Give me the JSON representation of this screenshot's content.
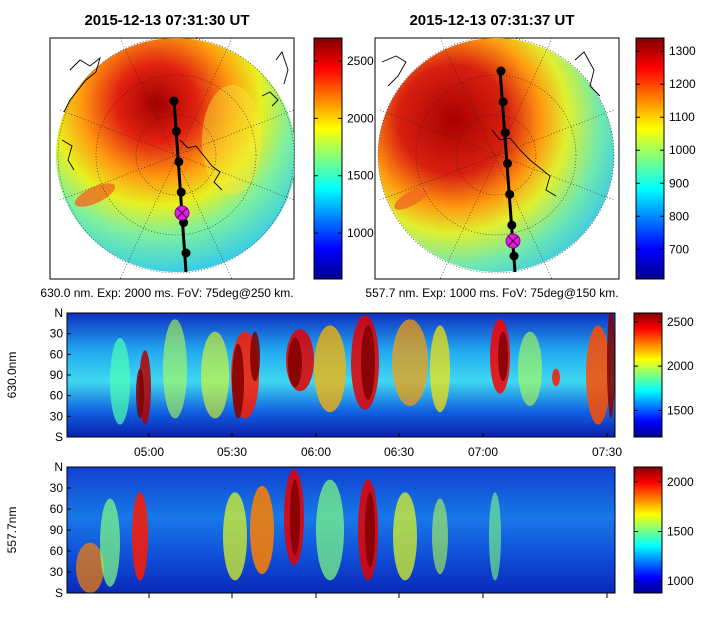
{
  "chart_data": [
    {
      "type": "heatmap",
      "panel": "all-sky-image",
      "title": "2015-12-13 07:31:30 UT",
      "caption": "630.0 nm. Exp: 2000 ms. FoV: 75deg@250 km.",
      "colorbar": {
        "min": 600,
        "max": 2700,
        "ticks": [
          1000,
          1500,
          2000,
          2500
        ],
        "tick_labels": [
          "1000",
          "1500",
          "2000",
          "2500"
        ]
      },
      "track_points": 6
    },
    {
      "type": "heatmap",
      "panel": "all-sky-image",
      "title": "2015-12-13 07:31:37 UT",
      "caption": "557.7 nm. Exp: 1000 ms. FoV: 75deg@150 km.",
      "colorbar": {
        "min": 610,
        "max": 1340,
        "ticks": [
          700,
          800,
          900,
          1000,
          1100,
          1200,
          1300
        ],
        "tick_labels": [
          "700",
          "800",
          "900",
          "1000",
          "1100",
          "1200",
          "1300"
        ]
      },
      "track_points": 7
    },
    {
      "type": "heatmap",
      "panel": "keogram",
      "ylabel": "630.0nm",
      "y_tick_labels": [
        "N",
        "30",
        "60",
        "90",
        "60",
        "30",
        "S"
      ],
      "x_tick_labels": [
        "05:00",
        "05:30",
        "06:00",
        "06:30",
        "07:00",
        "07:30"
      ],
      "colorbar": {
        "min": 1200,
        "max": 2600,
        "ticks": [
          1500,
          2000,
          2500
        ],
        "tick_labels": [
          "1500",
          "2000",
          "2500"
        ]
      }
    },
    {
      "type": "heatmap",
      "panel": "keogram",
      "ylabel": "557.7nm",
      "y_tick_labels": [
        "N",
        "30",
        "60",
        "90",
        "60",
        "30",
        "S"
      ],
      "colorbar": {
        "min": 880,
        "max": 2150,
        "ticks": [
          1000,
          1500,
          2000
        ],
        "tick_labels": [
          "1000",
          "1500",
          "2000"
        ]
      }
    }
  ]
}
